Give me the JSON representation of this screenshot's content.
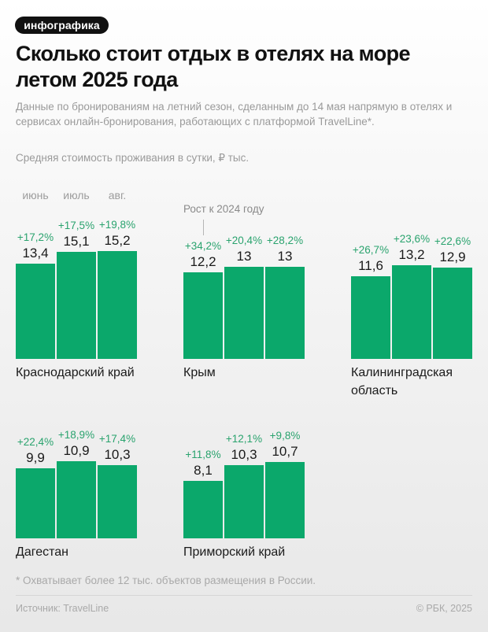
{
  "badge": "инфографика",
  "title": "Сколько стоит отдых в отелях на море летом 2025 года",
  "subtitle": "Данные по бронированиям на летний сезон, сделанным до 14 мая напрямую в отелях и сервисах онлайн-бронирования, работающих с платформой TravelLine*.",
  "unit_label": "Средняя стоимость проживания в сутки, ₽ тыс.",
  "months": [
    "июнь",
    "июль",
    "авг."
  ],
  "annotation": "Рост к 2024 году",
  "regions": [
    {
      "name": "Краснодарский край",
      "values": [
        "13,4",
        "15,1",
        "15,2"
      ],
      "growth": [
        "+17,2%",
        "+17,5%",
        "+19,8%"
      ]
    },
    {
      "name": "Крым",
      "values": [
        "12,2",
        "13",
        "13"
      ],
      "growth": [
        "+34,2%",
        "+20,4%",
        "+28,2%"
      ]
    },
    {
      "name": "Калининградская область",
      "values": [
        "11,6",
        "13,2",
        "12,9"
      ],
      "growth": [
        "+26,7%",
        "+23,6%",
        "+22,6%"
      ]
    },
    {
      "name": "Дагестан",
      "values": [
        "9,9",
        "10,9",
        "10,3"
      ],
      "growth": [
        "+22,4%",
        "+18,9%",
        "+17,4%"
      ]
    },
    {
      "name": "Приморский край",
      "values": [
        "8,1",
        "10,3",
        "10,7"
      ],
      "growth": [
        "+11,8%",
        "+12,1%",
        "+9,8%"
      ]
    }
  ],
  "footnote": "* Охватывает более 12 тыс. объектов размещения в России.",
  "source": "Источник: TravelLine",
  "copyright": "© РБК, 2025",
  "colors": {
    "bar": "#0ba86b",
    "growth_text": "#2aa36e",
    "badge_bg": "#111111"
  },
  "chart_data": {
    "type": "bar",
    "title": "Сколько стоит отдых в отелях на море летом 2025 года",
    "subtitle": "Средняя стоимость проживания в сутки, ₽ тыс.",
    "categories": [
      "июнь",
      "июль",
      "авг."
    ],
    "xlabel": "",
    "ylabel": "₽ тыс.",
    "grid": false,
    "legend": null,
    "panels": [
      {
        "name": "Краснодарский край",
        "values": [
          13.4,
          15.1,
          15.2
        ],
        "growth_vs_2024_pct": [
          17.2,
          17.5,
          19.8
        ]
      },
      {
        "name": "Крым",
        "values": [
          12.2,
          13,
          13
        ],
        "growth_vs_2024_pct": [
          34.2,
          20.4,
          28.2
        ]
      },
      {
        "name": "Калининградская область",
        "values": [
          11.6,
          13.2,
          12.9
        ],
        "growth_vs_2024_pct": [
          26.7,
          23.6,
          22.6
        ]
      },
      {
        "name": "Дагестан",
        "values": [
          9.9,
          10.9,
          10.3
        ],
        "growth_vs_2024_pct": [
          22.4,
          18.9,
          17.4
        ]
      },
      {
        "name": "Приморский край",
        "values": [
          8.1,
          10.3,
          10.7
        ],
        "growth_vs_2024_pct": [
          11.8,
          12.1,
          9.8
        ]
      }
    ],
    "annotations": [
      "Рост к 2024 году"
    ]
  }
}
